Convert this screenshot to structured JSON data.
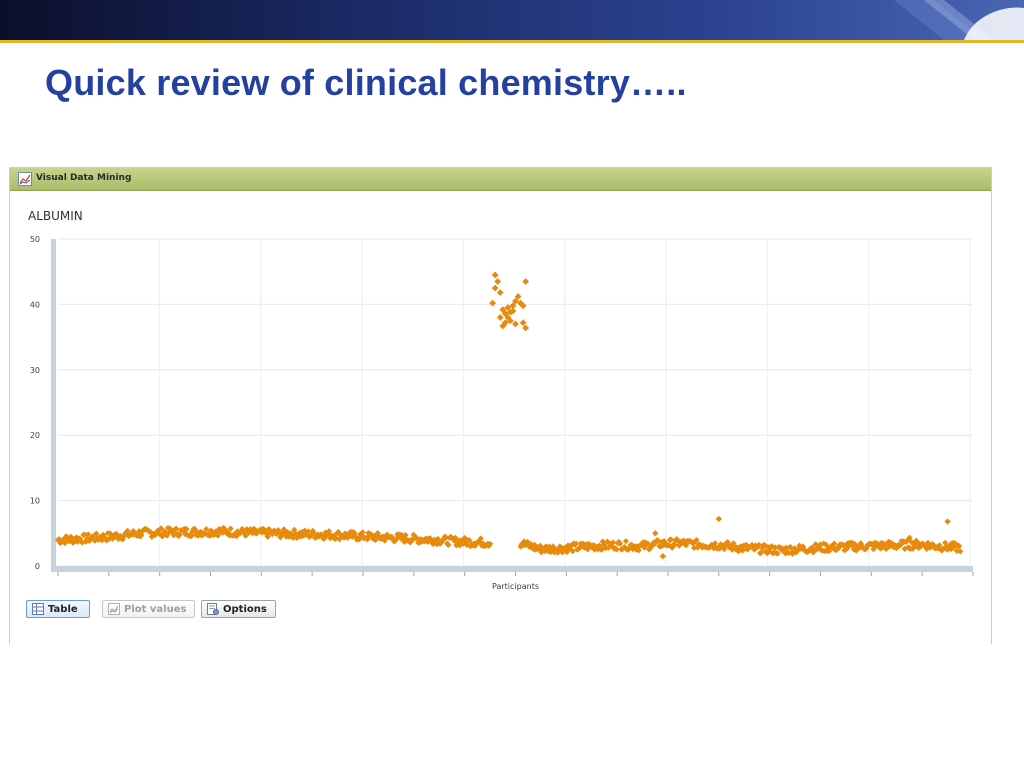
{
  "slide": {
    "title": "Quick review of clinical chemistry….."
  },
  "window": {
    "title": "Visual Data Mining",
    "icon": "chart-icon"
  },
  "toolbar": {
    "table_label": "Table",
    "plot_values_label": "Plot values",
    "options_label": "Options",
    "table_icon": "table-icon",
    "plot_values_icon": "chart-icon",
    "options_icon": "options-icon"
  },
  "colors": {
    "banner_accent": "#e2b52a",
    "title": "#2541a0",
    "panel_header": "#b5c77a",
    "marker": "#e88a0c"
  },
  "chart_data": {
    "type": "scatter",
    "title": "ALBUMIN",
    "xlabel": "Participants",
    "ylabel": "",
    "ylim": [
      0,
      50
    ],
    "yticks": [
      0,
      10,
      20,
      30,
      40,
      50
    ],
    "grid": true,
    "marker": "diamond",
    "trend_segments": [
      {
        "x_range": [
          0,
          170
        ],
        "y_values": [
          4.0,
          4.2,
          4.5,
          5.0,
          5.2,
          5.2,
          5.3,
          5.1,
          5.0,
          4.9,
          4.8,
          4.6,
          4.4,
          4.2,
          4.0,
          3.7,
          3.6
        ]
      },
      {
        "x_range": [
          182,
          355
        ],
        "y_values": [
          3.5,
          2.6,
          2.7,
          2.9,
          3.1,
          3.2,
          3.0,
          3.4,
          3.5,
          3.3,
          3.2,
          2.8,
          2.6,
          2.4,
          2.6,
          2.8,
          2.9,
          3.0,
          3.1,
          3.2,
          3.3,
          3.0,
          2.8
        ]
      }
    ],
    "cluster": [
      {
        "x": 172,
        "y": 44.5
      },
      {
        "x": 173,
        "y": 43.5
      },
      {
        "x": 172,
        "y": 42.5
      },
      {
        "x": 174,
        "y": 41.8
      },
      {
        "x": 171,
        "y": 40.2
      },
      {
        "x": 175,
        "y": 39.2
      },
      {
        "x": 176,
        "y": 38.6
      },
      {
        "x": 177,
        "y": 39.5
      },
      {
        "x": 178,
        "y": 38.8
      },
      {
        "x": 179,
        "y": 39.0
      },
      {
        "x": 180,
        "y": 40.5
      },
      {
        "x": 181,
        "y": 41.2
      },
      {
        "x": 182,
        "y": 40.2
      },
      {
        "x": 183,
        "y": 39.8
      },
      {
        "x": 184,
        "y": 43.5
      },
      {
        "x": 176,
        "y": 37.2
      },
      {
        "x": 175,
        "y": 36.7
      },
      {
        "x": 178,
        "y": 37.5
      },
      {
        "x": 180,
        "y": 37.0
      },
      {
        "x": 183,
        "y": 37.2
      },
      {
        "x": 184,
        "y": 36.4
      },
      {
        "x": 174,
        "y": 38.0
      },
      {
        "x": 177,
        "y": 38.0
      },
      {
        "x": 179,
        "y": 39.8
      }
    ],
    "outliers": [
      {
        "x": 235,
        "y": 5.0
      },
      {
        "x": 260,
        "y": 7.2
      },
      {
        "x": 238,
        "y": 1.5
      },
      {
        "x": 335,
        "y": 4.3
      },
      {
        "x": 350,
        "y": 6.8
      }
    ],
    "x_max": 360
  }
}
